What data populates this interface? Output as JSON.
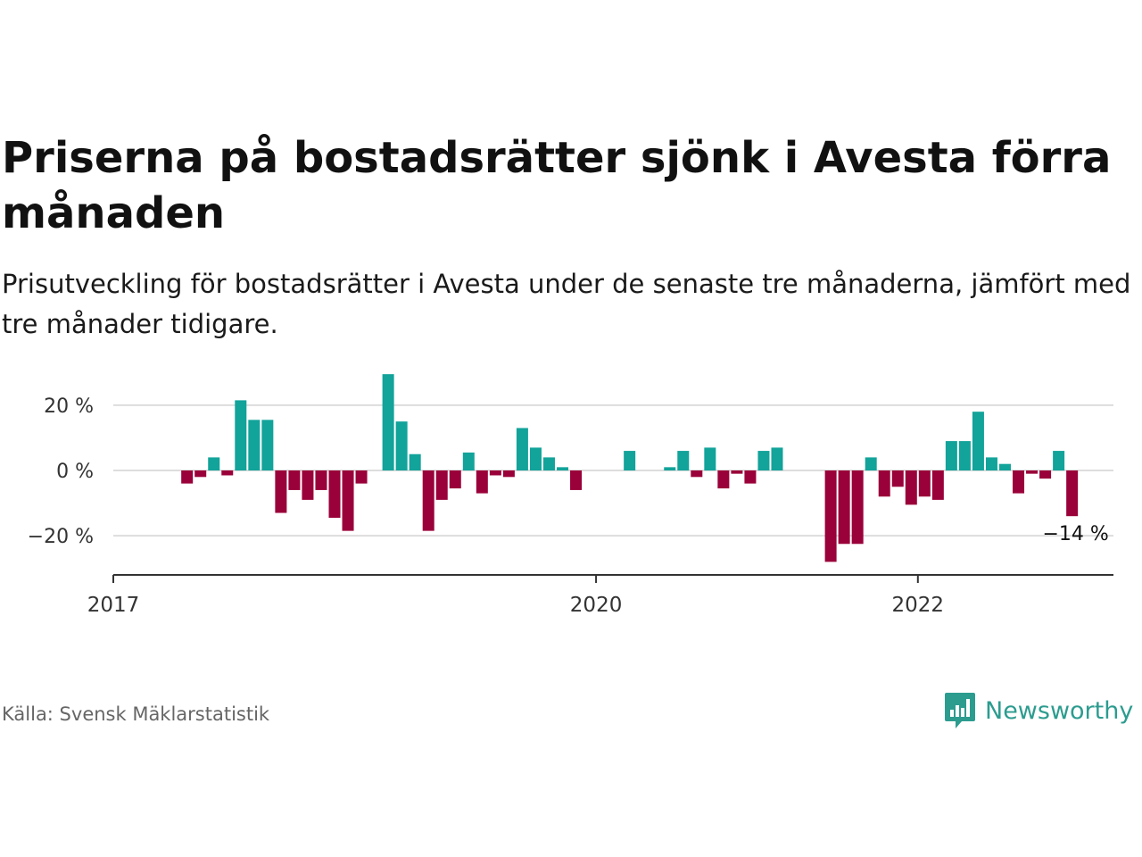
{
  "header": {
    "title": "Priserna på bostadsrätter sjönk i Avesta förra månaden",
    "subtitle": "Prisutveckling för bostadsrätter i Avesta under de senaste tre månaderna, jämfört med tre månader tidigare."
  },
  "footer": {
    "source": "Källa: Svensk Mäklarstatistik",
    "logo_text": "Newsworthy",
    "logo_icon": "bar-chart-speech-bubble-icon"
  },
  "colors": {
    "positive": "#12a39a",
    "negative": "#9a0039",
    "grid": "#dddddd",
    "axis": "#333333",
    "brand": "#2c9c8f"
  },
  "chart_data": {
    "type": "bar",
    "title": "Priserna på bostadsrätter sjönk i Avesta förra månaden",
    "subtitle": "Prisutveckling för bostadsrätter i Avesta under de senaste tre månaderna, jämfört med tre månader tidigare.",
    "x_axis": {
      "type": "date",
      "start": "2017-01",
      "end": "2023-03",
      "ticks": [
        {
          "value": "2017-01",
          "label": "2017"
        },
        {
          "value": "2020-01",
          "label": "2020"
        },
        {
          "value": "2022-01",
          "label": "2022"
        }
      ]
    },
    "y_axis": {
      "ylim": [
        -32,
        32
      ],
      "ticks": [
        {
          "value": 20,
          "label": "20 %"
        },
        {
          "value": 0,
          "label": "0 %"
        },
        {
          "value": -20,
          "label": "−20 %"
        }
      ],
      "grid": true
    },
    "series": [
      {
        "unit": "%",
        "points": [
          {
            "x": "2017-06",
            "y": -4
          },
          {
            "x": "2017-07",
            "y": -2
          },
          {
            "x": "2017-08",
            "y": 4
          },
          {
            "x": "2017-09",
            "y": -1.5
          },
          {
            "x": "2017-10",
            "y": 21.5
          },
          {
            "x": "2017-11",
            "y": 15.5
          },
          {
            "x": "2017-12",
            "y": 15.5
          },
          {
            "x": "2018-01",
            "y": -13
          },
          {
            "x": "2018-02",
            "y": -6
          },
          {
            "x": "2018-03",
            "y": -9
          },
          {
            "x": "2018-04",
            "y": -6
          },
          {
            "x": "2018-05",
            "y": -14.5
          },
          {
            "x": "2018-06",
            "y": -18.5
          },
          {
            "x": "2018-07",
            "y": -4
          },
          {
            "x": "2018-08",
            "y": null
          },
          {
            "x": "2018-09",
            "y": 29.5
          },
          {
            "x": "2018-10",
            "y": 15
          },
          {
            "x": "2018-11",
            "y": 5
          },
          {
            "x": "2018-12",
            "y": -18.5
          },
          {
            "x": "2019-01",
            "y": -9
          },
          {
            "x": "2019-02",
            "y": -5.5
          },
          {
            "x": "2019-03",
            "y": 5.5
          },
          {
            "x": "2019-04",
            "y": -7
          },
          {
            "x": "2019-05",
            "y": -1.5
          },
          {
            "x": "2019-06",
            "y": -2
          },
          {
            "x": "2019-07",
            "y": 13
          },
          {
            "x": "2019-08",
            "y": 7
          },
          {
            "x": "2019-09",
            "y": 4
          },
          {
            "x": "2019-10",
            "y": 1
          },
          {
            "x": "2019-11",
            "y": -6
          },
          {
            "x": "2020-03",
            "y": 6
          },
          {
            "x": "2020-06",
            "y": 1
          },
          {
            "x": "2020-07",
            "y": 6
          },
          {
            "x": "2020-08",
            "y": -2
          },
          {
            "x": "2020-09",
            "y": 7
          },
          {
            "x": "2020-10",
            "y": -5.5
          },
          {
            "x": "2020-11",
            "y": -1
          },
          {
            "x": "2020-12",
            "y": -4
          },
          {
            "x": "2021-01",
            "y": 6
          },
          {
            "x": "2021-02",
            "y": 7
          },
          {
            "x": "2021-06",
            "y": -28
          },
          {
            "x": "2021-07",
            "y": -22.5
          },
          {
            "x": "2021-08",
            "y": -22.5
          },
          {
            "x": "2021-09",
            "y": 4
          },
          {
            "x": "2021-10",
            "y": -8
          },
          {
            "x": "2021-11",
            "y": -5
          },
          {
            "x": "2021-12",
            "y": -10.5
          },
          {
            "x": "2022-01",
            "y": -8
          },
          {
            "x": "2022-02",
            "y": -9
          },
          {
            "x": "2022-03",
            "y": 9
          },
          {
            "x": "2022-04",
            "y": 9
          },
          {
            "x": "2022-05",
            "y": 18
          },
          {
            "x": "2022-06",
            "y": 4
          },
          {
            "x": "2022-07",
            "y": 2
          },
          {
            "x": "2022-08",
            "y": -7
          },
          {
            "x": "2022-09",
            "y": -1
          },
          {
            "x": "2022-10",
            "y": -2.5
          },
          {
            "x": "2022-11",
            "y": 6
          },
          {
            "x": "2022-12",
            "y": -14
          }
        ]
      }
    ],
    "annotations": [
      {
        "x": "2022-12",
        "y": -14,
        "text": "−14 %"
      }
    ]
  }
}
